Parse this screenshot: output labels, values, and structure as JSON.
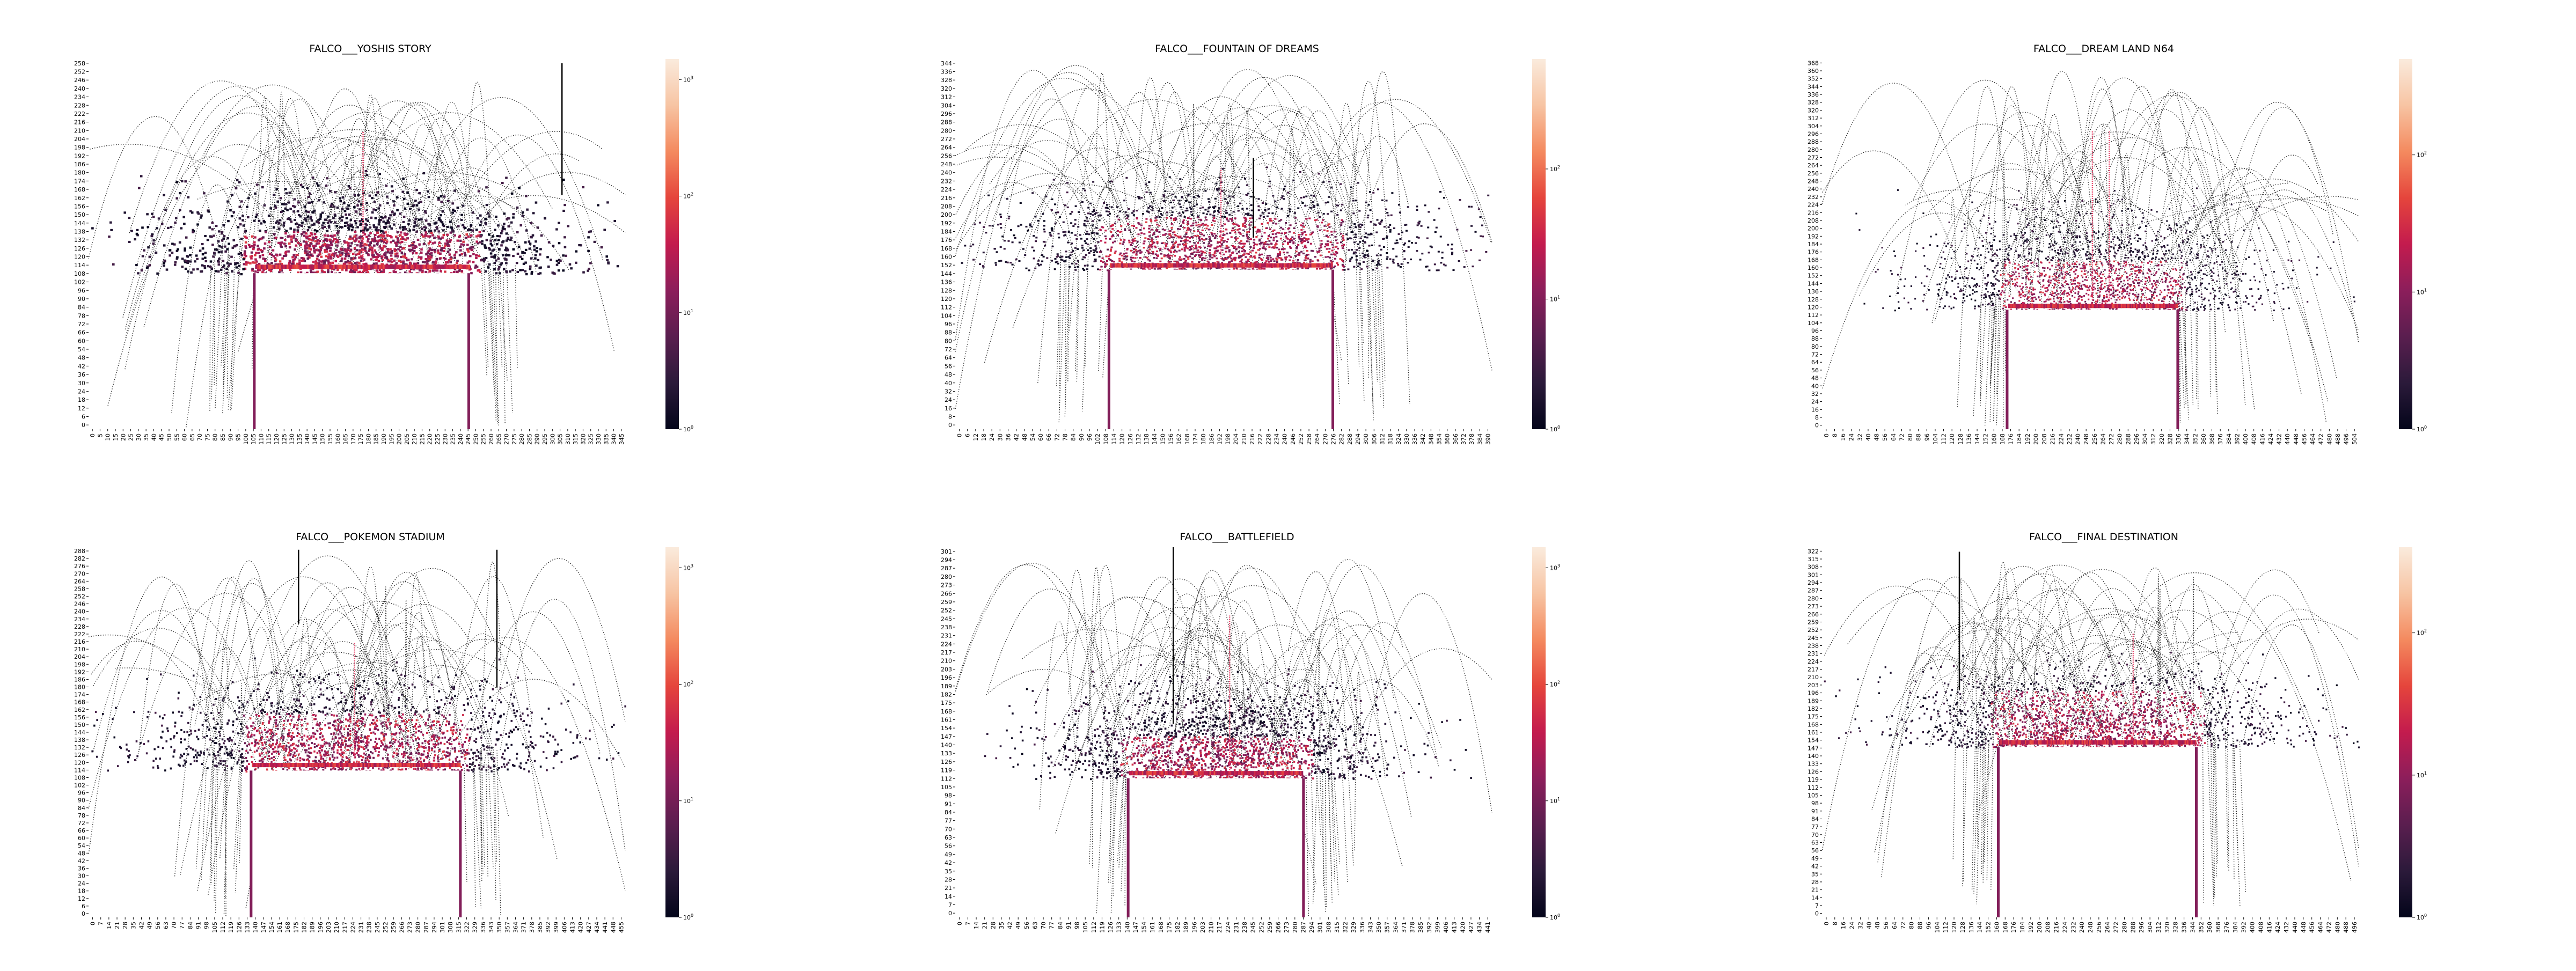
{
  "colors": {
    "colormap": [
      "#03051a",
      "#2b1a3a",
      "#5a1e4f",
      "#8c1e5b",
      "#c31b4e",
      "#e5453c",
      "#f48a5f",
      "#f7c4a3",
      "#faebdd"
    ],
    "platform_blank": "#ffffff",
    "pink_line": "#e8436a"
  },
  "chart_data": [
    {
      "type": "heatmap",
      "title": "FALCO___YOSHIS STORY",
      "scale": "log",
      "colorbar_ticks": [
        "10^0",
        "10^1",
        "10^2",
        "10^3"
      ],
      "colorbar_range": [
        1,
        1500
      ],
      "y_ticks": [
        "258",
        "252",
        "246",
        "240",
        "234",
        "228",
        "222",
        "216",
        "210",
        "204",
        "198",
        "192",
        "186",
        "180",
        "174",
        "168",
        "162",
        "156",
        "150",
        "144",
        "138",
        "132",
        "126",
        "120",
        "114",
        "108",
        "102",
        "96",
        "90",
        "84",
        "78",
        "72",
        "66",
        "60",
        "54",
        "48",
        "42",
        "36",
        "30",
        "24",
        "18",
        "12",
        "6",
        "0"
      ],
      "x_ticks": [
        "0",
        "5",
        "10",
        "15",
        "20",
        "25",
        "30",
        "35",
        "40",
        "45",
        "50",
        "55",
        "60",
        "65",
        "70",
        "75",
        "80",
        "85",
        "90",
        "95",
        "100",
        "105",
        "110",
        "115",
        "120",
        "125",
        "130",
        "135",
        "140",
        "145",
        "150",
        "155",
        "160",
        "165",
        "170",
        "175",
        "180",
        "185",
        "190",
        "195",
        "200",
        "205",
        "210",
        "215",
        "220",
        "225",
        "230",
        "235",
        "240",
        "245",
        "250",
        "255",
        "260",
        "265",
        "270",
        "275",
        "280",
        "285",
        "290",
        "295",
        "300",
        "305",
        "310",
        "315",
        "320",
        "325",
        "330",
        "335",
        "340",
        "345"
      ],
      "x_range": [
        0,
        348
      ],
      "y_range": [
        0,
        261
      ],
      "platform": {
        "x": [
          108,
          246
        ],
        "y": [
          0,
          110
        ]
      },
      "density_band": {
        "y": [
          110,
          140
        ]
      },
      "bright_lines": [
        {
          "x": 178,
          "y": [
            115,
            210
          ]
        }
      ],
      "vertical_spikes": [
        {
          "x": 307,
          "y": [
            165,
            258
          ]
        }
      ]
    },
    {
      "type": "heatmap",
      "title": "FALCO___FOUNTAIN OF DREAMS",
      "scale": "log",
      "colorbar_ticks": [
        "10^0",
        "10^1",
        "10^2"
      ],
      "colorbar_range": [
        1,
        700
      ],
      "y_ticks": [
        "344",
        "336",
        "328",
        "320",
        "312",
        "304",
        "296",
        "288",
        "280",
        "272",
        "264",
        "256",
        "248",
        "240",
        "232",
        "224",
        "216",
        "208",
        "200",
        "192",
        "184",
        "176",
        "168",
        "160",
        "152",
        "144",
        "136",
        "128",
        "120",
        "112",
        "104",
        "96",
        "88",
        "80",
        "72",
        "64",
        "56",
        "48",
        "40",
        "32",
        "24",
        "16",
        "8",
        "0"
      ],
      "x_ticks": [
        "0",
        "6",
        "12",
        "18",
        "24",
        "30",
        "36",
        "42",
        "48",
        "54",
        "60",
        "66",
        "72",
        "78",
        "84",
        "90",
        "96",
        "102",
        "108",
        "114",
        "120",
        "126",
        "132",
        "138",
        "144",
        "150",
        "156",
        "162",
        "168",
        "174",
        "180",
        "186",
        "192",
        "198",
        "204",
        "210",
        "216",
        "222",
        "228",
        "234",
        "240",
        "246",
        "252",
        "258",
        "264",
        "270",
        "276",
        "282",
        "288",
        "294",
        "300",
        "306",
        "312",
        "318",
        "324",
        "330",
        "336",
        "342",
        "348",
        "354",
        "360",
        "366",
        "372",
        "378",
        "384",
        "390"
      ],
      "x_range": [
        0,
        396
      ],
      "y_range": [
        0,
        348
      ],
      "platform": {
        "x": [
          114,
          278
        ],
        "y": [
          0,
          150
        ]
      },
      "density_band": {
        "y": [
          150,
          200
        ]
      },
      "bright_lines": [
        {
          "x": 196,
          "y": [
            160,
            245
          ]
        }
      ],
      "vertical_spikes": [
        {
          "x": 220,
          "y": [
            180,
            255
          ]
        }
      ]
    },
    {
      "type": "heatmap",
      "title": "FALCO___DREAM LAND N64",
      "scale": "log",
      "colorbar_ticks": [
        "10^0",
        "10^1",
        "10^2"
      ],
      "colorbar_range": [
        1,
        500
      ],
      "y_ticks": [
        "368",
        "360",
        "352",
        "344",
        "336",
        "328",
        "320",
        "312",
        "304",
        "296",
        "288",
        "280",
        "272",
        "264",
        "256",
        "248",
        "240",
        "232",
        "224",
        "216",
        "208",
        "200",
        "192",
        "184",
        "176",
        "168",
        "160",
        "152",
        "144",
        "136",
        "128",
        "120",
        "112",
        "104",
        "96",
        "88",
        "80",
        "72",
        "64",
        "56",
        "48",
        "40",
        "32",
        "24",
        "16",
        "8",
        "0"
      ],
      "x_ticks": [
        "0",
        "8",
        "16",
        "24",
        "32",
        "40",
        "48",
        "56",
        "64",
        "72",
        "80",
        "88",
        "96",
        "104",
        "112",
        "120",
        "128",
        "136",
        "144",
        "152",
        "160",
        "168",
        "176",
        "184",
        "192",
        "200",
        "208",
        "216",
        "224",
        "232",
        "240",
        "248",
        "256",
        "264",
        "272",
        "280",
        "288",
        "296",
        "304",
        "312",
        "320",
        "328",
        "336",
        "344",
        "352",
        "360",
        "368",
        "376",
        "384",
        "392",
        "400",
        "408",
        "416",
        "424",
        "432",
        "440",
        "448",
        "456",
        "464",
        "472",
        "480",
        "488",
        "496",
        "504"
      ],
      "x_range": [
        0,
        508
      ],
      "y_range": [
        0,
        372
      ],
      "platform": {
        "x": [
          176,
          336
        ],
        "y": [
          0,
          120
        ]
      },
      "density_band": {
        "y": [
          120,
          170
        ]
      },
      "bright_lines": [
        {
          "x": 256,
          "y": [
            130,
            300
          ]
        },
        {
          "x": 272,
          "y": [
            130,
            300
          ]
        }
      ],
      "vertical_spikes": []
    },
    {
      "type": "heatmap",
      "title": "FALCO___POKEMON STADIUM",
      "scale": "log",
      "colorbar_ticks": [
        "10^0",
        "10^1",
        "10^2",
        "10^3"
      ],
      "colorbar_range": [
        1,
        1500
      ],
      "y_ticks": [
        "288",
        "282",
        "276",
        "270",
        "264",
        "258",
        "252",
        "246",
        "240",
        "234",
        "228",
        "222",
        "216",
        "210",
        "204",
        "198",
        "192",
        "186",
        "180",
        "174",
        "168",
        "162",
        "156",
        "150",
        "144",
        "138",
        "132",
        "126",
        "120",
        "114",
        "108",
        "102",
        "96",
        "90",
        "84",
        "78",
        "72",
        "66",
        "60",
        "54",
        "48",
        "42",
        "36",
        "30",
        "24",
        "18",
        "12",
        "6",
        "0"
      ],
      "x_ticks": [
        "0",
        "7",
        "14",
        "21",
        "28",
        "35",
        "42",
        "49",
        "56",
        "63",
        "70",
        "77",
        "84",
        "91",
        "98",
        "105",
        "112",
        "119",
        "126",
        "133",
        "140",
        "147",
        "154",
        "161",
        "168",
        "175",
        "182",
        "189",
        "196",
        "203",
        "210",
        "217",
        "224",
        "231",
        "238",
        "245",
        "252",
        "259",
        "266",
        "273",
        "280",
        "287",
        "294",
        "301",
        "308",
        "315",
        "322",
        "329",
        "336",
        "343",
        "350",
        "357",
        "364",
        "371",
        "378",
        "385",
        "392",
        "399",
        "406",
        "413",
        "420",
        "427",
        "434",
        "441",
        "448",
        "455"
      ],
      "x_range": [
        0,
        460
      ],
      "y_range": [
        0,
        290
      ],
      "platform": {
        "x": [
          140,
          318
        ],
        "y": [
          0,
          115
        ]
      },
      "density_band": {
        "y": [
          115,
          160
        ]
      },
      "bright_lines": [
        {
          "x": 228,
          "y": [
            125,
            215
          ]
        }
      ],
      "vertical_spikes": [
        {
          "x": 180,
          "y": [
            230,
            288
          ]
        },
        {
          "x": 350,
          "y": [
            180,
            288
          ]
        }
      ]
    },
    {
      "type": "heatmap",
      "title": "FALCO___BATTLEFIELD",
      "scale": "log",
      "colorbar_ticks": [
        "10^0",
        "10^1",
        "10^2",
        "10^3"
      ],
      "colorbar_range": [
        1,
        1500
      ],
      "y_ticks": [
        "301",
        "294",
        "287",
        "280",
        "273",
        "266",
        "259",
        "252",
        "245",
        "238",
        "231",
        "224",
        "217",
        "210",
        "203",
        "196",
        "189",
        "182",
        "175",
        "168",
        "161",
        "154",
        "147",
        "140",
        "133",
        "126",
        "119",
        "112",
        "105",
        "98",
        "91",
        "84",
        "77",
        "70",
        "63",
        "56",
        "49",
        "42",
        "35",
        "28",
        "21",
        "14",
        "7",
        "0"
      ],
      "x_ticks": [
        "0",
        "7",
        "14",
        "21",
        "28",
        "35",
        "42",
        "49",
        "56",
        "63",
        "70",
        "77",
        "84",
        "91",
        "98",
        "105",
        "112",
        "119",
        "126",
        "133",
        "140",
        "147",
        "154",
        "161",
        "168",
        "175",
        "182",
        "189",
        "196",
        "203",
        "210",
        "217",
        "224",
        "231",
        "238",
        "245",
        "252",
        "259",
        "266",
        "273",
        "280",
        "287",
        "294",
        "301",
        "308",
        "315",
        "322",
        "329",
        "336",
        "343",
        "350",
        "357",
        "364",
        "371",
        "378",
        "385",
        "392",
        "399",
        "406",
        "413",
        "420",
        "427",
        "434",
        "441"
      ],
      "x_range": [
        0,
        448
      ],
      "y_range": [
        0,
        306
      ],
      "platform": {
        "x": [
          145,
          290
        ],
        "y": [
          0,
          115
        ]
      },
      "density_band": {
        "y": [
          115,
          150
        ]
      },
      "bright_lines": [
        {
          "x": 229,
          "y": [
            120,
            250
          ]
        }
      ],
      "vertical_spikes": [
        {
          "x": 182,
          "y": [
            160,
            306
          ]
        }
      ]
    },
    {
      "type": "heatmap",
      "title": "FALCO___FINAL DESTINATION",
      "scale": "log",
      "colorbar_ticks": [
        "10^0",
        "10^1",
        "10^2"
      ],
      "colorbar_range": [
        1,
        400
      ],
      "y_ticks": [
        "322",
        "315",
        "308",
        "301",
        "294",
        "287",
        "280",
        "273",
        "266",
        "259",
        "252",
        "245",
        "238",
        "231",
        "224",
        "217",
        "210",
        "203",
        "196",
        "189",
        "182",
        "175",
        "168",
        "161",
        "154",
        "147",
        "140",
        "133",
        "126",
        "119",
        "112",
        "105",
        "98",
        "91",
        "84",
        "77",
        "70",
        "63",
        "56",
        "49",
        "42",
        "35",
        "28",
        "21",
        "14",
        "7",
        "0"
      ],
      "x_ticks": [
        "0",
        "8",
        "16",
        "24",
        "32",
        "40",
        "48",
        "56",
        "64",
        "72",
        "80",
        "88",
        "96",
        "104",
        "112",
        "120",
        "128",
        "136",
        "144",
        "152",
        "160",
        "168",
        "176",
        "184",
        "192",
        "200",
        "208",
        "216",
        "224",
        "232",
        "240",
        "248",
        "256",
        "264",
        "272",
        "280",
        "288",
        "296",
        "304",
        "312",
        "320",
        "328",
        "336",
        "344",
        "352",
        "360",
        "368",
        "376",
        "384",
        "392",
        "400",
        "408",
        "416",
        "424",
        "432",
        "440",
        "448",
        "456",
        "464",
        "472",
        "480",
        "488",
        "496"
      ],
      "x_range": [
        0,
        500
      ],
      "y_range": [
        0,
        326
      ],
      "platform": {
        "x": [
          165,
          348
        ],
        "y": [
          0,
          150
        ]
      },
      "density_band": {
        "y": [
          150,
          200
        ]
      },
      "bright_lines": [
        {
          "x": 290,
          "y": [
            160,
            250
          ]
        }
      ],
      "vertical_spikes": [
        {
          "x": 128,
          "y": [
            200,
            322
          ]
        }
      ]
    }
  ]
}
